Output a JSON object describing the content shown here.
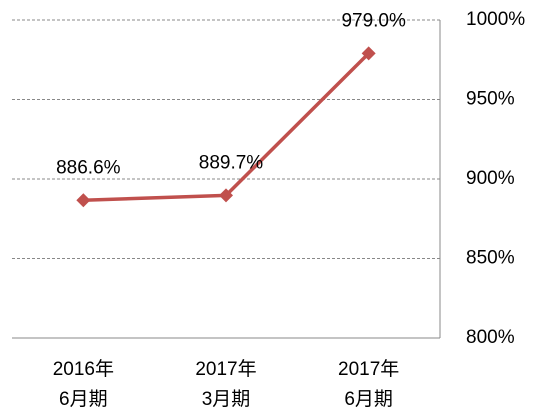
{
  "chart_data": {
    "type": "line",
    "categories": [
      "2016年\n6月期",
      "2017年\n3月期",
      "2017年\n6月期"
    ],
    "series": [
      {
        "name": null,
        "color": "#c0504d",
        "values": [
          886.6,
          889.7,
          979.0
        ],
        "value_labels": [
          "886.6%",
          "889.7%",
          "979.0%"
        ]
      }
    ],
    "ylim": [
      800,
      1000
    ],
    "yticks": [
      {
        "value": 800,
        "label": "800%"
      },
      {
        "value": 850,
        "label": "850%"
      },
      {
        "value": 900,
        "label": "900%"
      },
      {
        "value": 950,
        "label": "950%"
      },
      {
        "value": 1000,
        "label": "1000%"
      }
    ],
    "grid": true,
    "y_axis_side": "right"
  }
}
